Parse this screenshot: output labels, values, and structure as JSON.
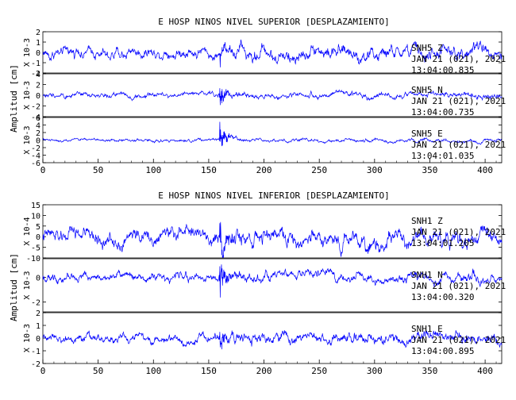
{
  "chart_data": [
    {
      "type": "line",
      "title": "E HOSP NINOS NIVEL SUPERIOR [DESPLAZAMIENTO]",
      "ylabel": "Amplitud [cm]",
      "xlim": [
        0,
        415
      ],
      "x_ticks": [
        "0",
        "50",
        "100",
        "150",
        "200",
        "250",
        "300",
        "350",
        "400"
      ],
      "series_color": "#0000ff",
      "event_time_s": 160,
      "traces": [
        {
          "station": "SNH5",
          "component": "Z",
          "date": "JAN 21 (021), 2021",
          "time": "13:04:00.835",
          "unit_label": "X 10-3",
          "ylim": [
            -2,
            2
          ],
          "y_ticks": [
            "2",
            "1",
            "0",
            "-1",
            "-2"
          ],
          "pre_amp": 0.9,
          "peak_amp": 1.7,
          "post_amp": 1.2,
          "noise_scale": 5
        },
        {
          "station": "SNH5",
          "component": "N",
          "date": "JAN 21 (021), 2021",
          "time": "13:04:00.735",
          "unit_label": "X 10-3",
          "ylim": [
            -4,
            4
          ],
          "y_ticks": [
            "4",
            "2",
            "0",
            "-2",
            "-4"
          ],
          "pre_amp": 0.8,
          "peak_amp": 3.5,
          "post_amp": 0.9,
          "noise_scale": 3
        },
        {
          "station": "SNH5",
          "component": "E",
          "date": "JAN 21 (021), 2021",
          "time": "13:04:01.035",
          "unit_label": "X 10-3",
          "ylim": [
            -6,
            6
          ],
          "y_ticks": [
            "6",
            "4",
            "2",
            "0",
            "-2",
            "-4",
            "-6"
          ],
          "pre_amp": 0.7,
          "peak_amp": 5.5,
          "post_amp": 0.8,
          "noise_scale": 3
        }
      ]
    },
    {
      "type": "line",
      "title": "E HOSP NINOS NIVEL INFERIOR [DESPLAZAMIENTO]",
      "ylabel": "Amplitud [cm]",
      "xlim": [
        0,
        415
      ],
      "x_ticks": [
        "0",
        "50",
        "100",
        "150",
        "200",
        "250",
        "300",
        "350",
        "400"
      ],
      "series_color": "#0000ff",
      "event_time_s": 160,
      "traces": [
        {
          "station": "SNH1",
          "component": "Z",
          "date": "JAN 21 (021), 2021",
          "time": "13:04:01.205",
          "unit_label": "X 10-4",
          "ylim": [
            -10,
            15
          ],
          "y_ticks": [
            "15",
            "10",
            "5",
            "0",
            "-5",
            "-10"
          ],
          "pre_amp": 6,
          "peak_amp": 15,
          "post_amp": 7,
          "noise_scale": 6
        },
        {
          "station": "SNH1",
          "component": "N",
          "date": "JAN 21 (021), 2021",
          "time": "13:04:00.320",
          "unit_label": "X 10-3",
          "ylim": [
            -2.8,
            1.5
          ],
          "y_ticks": [
            "0",
            "-2"
          ],
          "pre_amp": 0.6,
          "peak_amp": 2.6,
          "post_amp": 0.7,
          "noise_scale": 5
        },
        {
          "station": "SNH1",
          "component": "E",
          "date": "JAN 21 (021), 2021",
          "time": "13:04:00.895",
          "unit_label": "X 10-3",
          "ylim": [
            -2,
            2
          ],
          "y_ticks": [
            "2",
            "1",
            "0",
            "-1",
            "-2"
          ],
          "pre_amp": 0.6,
          "peak_amp": 1.6,
          "post_amp": 0.8,
          "noise_scale": 5
        }
      ]
    }
  ]
}
